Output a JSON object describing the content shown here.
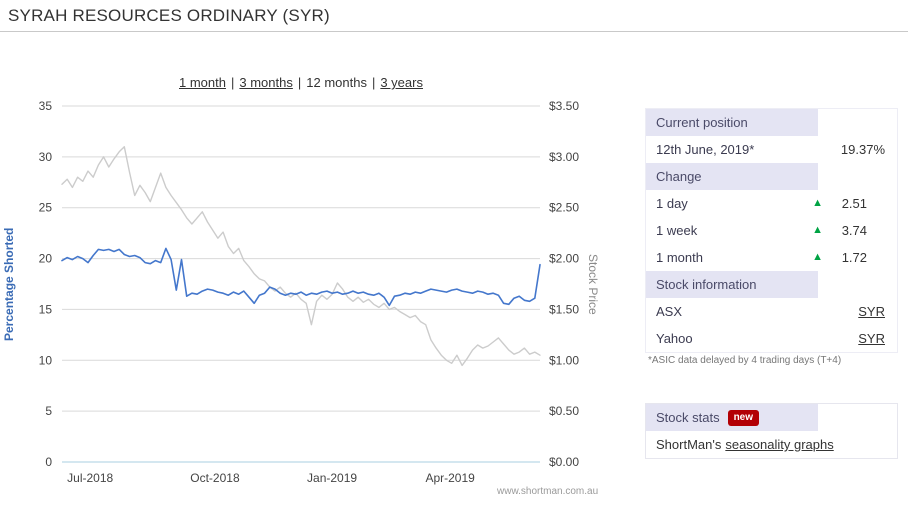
{
  "title": "SYRAH RESOURCES ORDINARY (SYR)",
  "range_selector": {
    "separator": "|",
    "items": [
      {
        "label": "1 month",
        "link": true,
        "selected": false
      },
      {
        "label": "3 months",
        "link": true,
        "selected": false
      },
      {
        "label": "12 months",
        "link": false,
        "selected": true
      },
      {
        "label": "3 years",
        "link": true,
        "selected": false
      }
    ]
  },
  "watermark": "www.shortman.com.au",
  "icons": {
    "up_arrow": "▲"
  },
  "colors": {
    "header_bg": "#e4e4f3",
    "up_green": "#00a344",
    "badge_red": "#b30005",
    "line_blue": "#4477cc",
    "line_gray": "#cccccc"
  },
  "chart_data": {
    "type": "line",
    "title": "",
    "grid": true,
    "grid_color": "#d9d9d9",
    "baseline_color": "#a8cfe0",
    "left_axis": {
      "label": "Percentage Shorted",
      "label_color": "#3a6bb5",
      "range": [
        0,
        35
      ],
      "ticks": [
        0,
        5,
        10,
        15,
        20,
        25,
        30,
        35
      ]
    },
    "right_axis": {
      "label": "Stock Price",
      "label_color": "#8a8a8a",
      "range": [
        0,
        3.5
      ],
      "ticks": [
        "$0.00",
        "$0.50",
        "$1.00",
        "$1.50",
        "$2.00",
        "$2.50",
        "$3.00",
        "$3.50"
      ]
    },
    "x_axis": {
      "ticks": [
        {
          "label": "Jul-2018",
          "pos": 0.059
        },
        {
          "label": "Oct-2018",
          "pos": 0.32
        },
        {
          "label": "Jan-2019",
          "pos": 0.565
        },
        {
          "label": "Apr-2019",
          "pos": 0.812
        }
      ]
    },
    "series": [
      {
        "name": "Stock Price",
        "axis": "right",
        "color": "#cccccc",
        "width": 1.4,
        "values": [
          2.73,
          2.78,
          2.7,
          2.8,
          2.76,
          2.86,
          2.8,
          2.92,
          3.0,
          2.9,
          2.98,
          3.05,
          3.1,
          2.85,
          2.62,
          2.72,
          2.65,
          2.56,
          2.7,
          2.84,
          2.7,
          2.62,
          2.55,
          2.48,
          2.4,
          2.34,
          2.4,
          2.46,
          2.36,
          2.28,
          2.2,
          2.26,
          2.12,
          2.05,
          2.1,
          1.98,
          1.92,
          1.85,
          1.8,
          1.78,
          1.72,
          1.68,
          1.72,
          1.66,
          1.62,
          1.66,
          1.6,
          1.56,
          1.35,
          1.58,
          1.64,
          1.6,
          1.65,
          1.76,
          1.7,
          1.62,
          1.58,
          1.62,
          1.57,
          1.6,
          1.55,
          1.52,
          1.56,
          1.5,
          1.52,
          1.48,
          1.45,
          1.42,
          1.44,
          1.38,
          1.35,
          1.2,
          1.12,
          1.05,
          1.0,
          0.97,
          1.05,
          0.95,
          1.02,
          1.1,
          1.15,
          1.12,
          1.14,
          1.18,
          1.22,
          1.16,
          1.1,
          1.06,
          1.08,
          1.12,
          1.06,
          1.08,
          1.05
        ]
      },
      {
        "name": "Percentage Shorted",
        "axis": "left",
        "color": "#4477cc",
        "width": 1.6,
        "values": [
          19.8,
          20.1,
          19.9,
          20.2,
          20.0,
          19.6,
          20.3,
          20.9,
          20.8,
          20.9,
          20.7,
          20.9,
          20.4,
          20.2,
          20.3,
          20.1,
          19.6,
          19.5,
          19.8,
          19.6,
          21.0,
          19.9,
          16.9,
          19.9,
          16.3,
          16.6,
          16.5,
          16.8,
          17.0,
          16.9,
          16.7,
          16.6,
          16.4,
          16.7,
          16.5,
          16.8,
          16.2,
          15.6,
          16.4,
          16.6,
          17.2,
          17.0,
          16.6,
          16.4,
          16.6,
          16.5,
          16.7,
          16.4,
          16.6,
          16.5,
          16.7,
          16.8,
          16.6,
          16.7,
          16.5,
          16.6,
          16.8,
          16.6,
          16.7,
          16.5,
          16.4,
          16.6,
          16.2,
          15.4,
          16.3,
          16.4,
          16.6,
          16.5,
          16.7,
          16.6,
          16.8,
          17.0,
          16.9,
          16.8,
          16.7,
          16.9,
          17.0,
          16.8,
          16.7,
          16.6,
          16.8,
          16.7,
          16.5,
          16.6,
          16.4,
          15.6,
          15.5,
          16.1,
          16.3,
          15.9,
          15.8,
          16.1,
          19.4
        ]
      }
    ]
  },
  "side_panel": {
    "table": {
      "header1": "Current position",
      "position_row": {
        "label": "12th June, 2019*",
        "value": "19.37%"
      },
      "header2": "Change",
      "change_rows": [
        {
          "label": "1 day",
          "value": "2.51",
          "direction": "up"
        },
        {
          "label": "1 week",
          "value": "3.74",
          "direction": "up"
        },
        {
          "label": "1 month",
          "value": "1.72",
          "direction": "up"
        }
      ],
      "header3": "Stock information",
      "info_rows": [
        {
          "label": "ASX",
          "value": "SYR"
        },
        {
          "label": "Yahoo",
          "value": "SYR"
        }
      ]
    },
    "footnote": "*ASIC data delayed by 4 trading days (T+4)",
    "stats_box": {
      "header": "Stock stats",
      "badge": "new",
      "row_prefix": "ShortMan's",
      "row_link": "seasonality graphs"
    }
  }
}
